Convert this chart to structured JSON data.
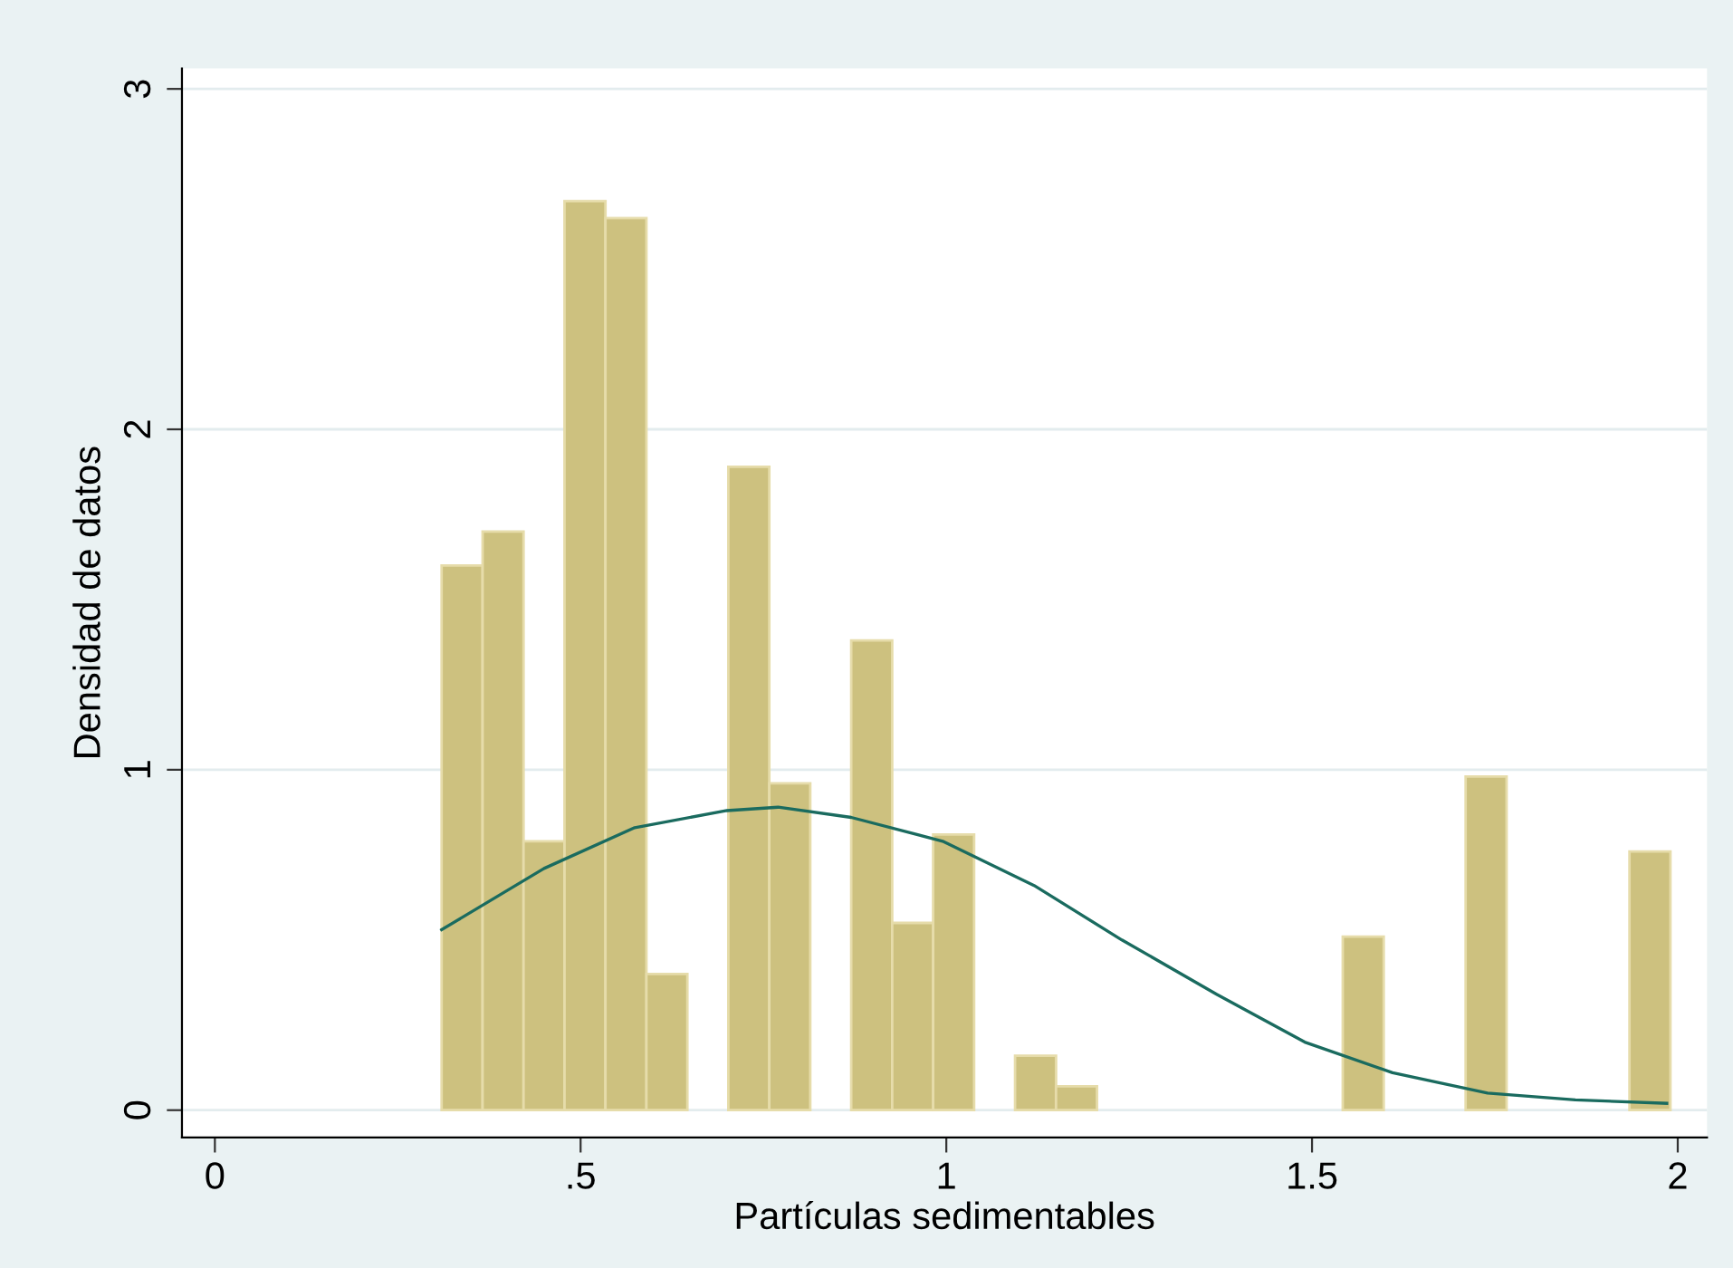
{
  "chart_data": {
    "type": "histogram",
    "xlabel": "Partículas sedimentables",
    "ylabel": "Densidad de datos",
    "bins": [
      0.31,
      0.366,
      0.422,
      0.478,
      0.534,
      0.59,
      0.646,
      0.702,
      0.758,
      0.814,
      0.87,
      0.926,
      0.982,
      1.038,
      1.094,
      1.15,
      1.206,
      1.262,
      1.318,
      1.374,
      1.43,
      1.486,
      1.542,
      1.598,
      1.654,
      1.71,
      1.766,
      1.822,
      1.878,
      1.934,
      1.99
    ],
    "series": [
      {
        "type": "histogram",
        "color": "#cdc17f",
        "values": [
          1.6,
          1.7,
          0.79,
          2.67,
          2.62,
          0.4,
          0,
          1.89,
          0.96,
          0,
          1.38,
          0.55,
          0.81,
          0,
          0.16,
          0.07,
          0,
          0,
          0,
          0,
          0,
          0,
          0.51,
          0,
          0,
          0.98,
          0,
          0,
          0,
          0.76
        ]
      },
      {
        "type": "line",
        "color": "#1a6b5f",
        "x": [
          0.31,
          0.45,
          0.574,
          0.7,
          0.77,
          0.87,
          0.995,
          1.12,
          1.24,
          1.37,
          1.49,
          1.61,
          1.74,
          1.86,
          1.985
        ],
        "values": [
          0.53,
          0.71,
          0.83,
          0.88,
          0.89,
          0.86,
          0.79,
          0.66,
          0.5,
          0.34,
          0.2,
          0.11,
          0.05,
          0.03,
          0.02
        ]
      }
    ],
    "xlim": [
      -0.045,
      2.04
    ],
    "ylim": [
      -0.08,
      3.06
    ],
    "xticks": [
      0,
      {
        "value": 0.5,
        "label": ".5"
      },
      1,
      1.5,
      2
    ],
    "yticks": [
      0,
      1,
      2,
      3
    ],
    "grid": "y"
  }
}
